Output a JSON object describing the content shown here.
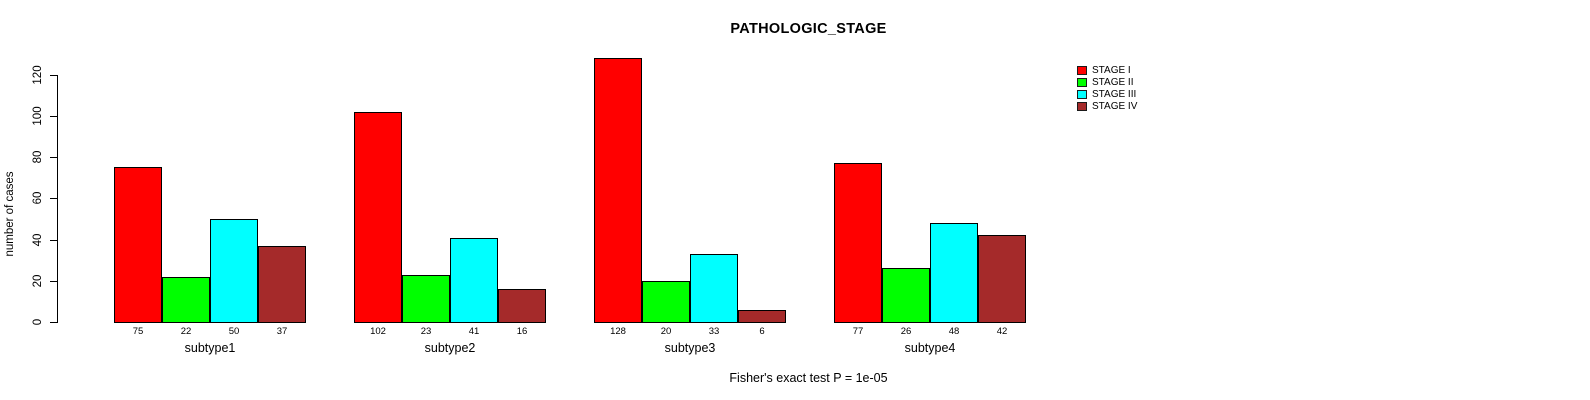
{
  "chart_data": {
    "type": "bar",
    "title": "PATHOLOGIC_STAGE",
    "ylabel": "number of cases",
    "xlabel": "",
    "ylim": [
      0,
      120
    ],
    "yticks": [
      0,
      20,
      40,
      60,
      80,
      100,
      120
    ],
    "grid": false,
    "legend_position": "top-right",
    "bar_value_labels_shown": true,
    "categories": [
      "subtype1",
      "subtype2",
      "subtype3",
      "subtype4"
    ],
    "series": [
      {
        "name": "STAGE I",
        "color": "#ff0000",
        "values": [
          75,
          102,
          128,
          77
        ]
      },
      {
        "name": "STAGE II",
        "color": "#00ff00",
        "values": [
          22,
          23,
          20,
          26
        ]
      },
      {
        "name": "STAGE III",
        "color": "#00ffff",
        "values": [
          50,
          41,
          33,
          48
        ]
      },
      {
        "name": "STAGE IV",
        "color": "#a52a2a",
        "values": [
          37,
          16,
          6,
          42
        ]
      }
    ],
    "footnote": "Fisher's exact test P = 1e-05"
  }
}
